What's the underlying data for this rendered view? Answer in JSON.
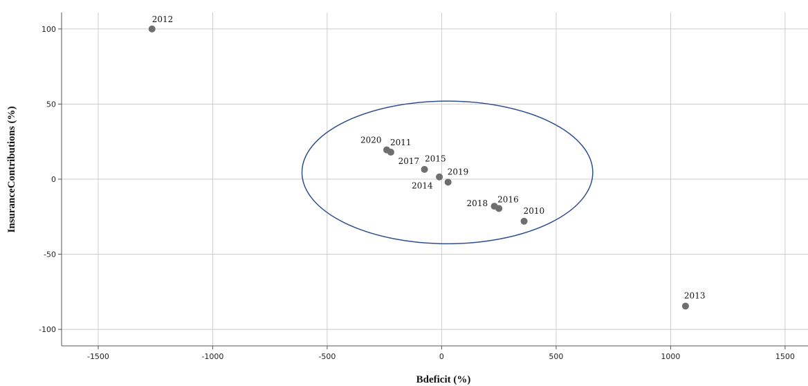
{
  "chart_data": {
    "type": "scatter",
    "xlabel": "Bdeficit (%)",
    "ylabel": "InsuranceContributions (%)",
    "xlim": [
      -1660,
      1600
    ],
    "ylim": [
      -111,
      111
    ],
    "x_ticks": [
      -1500,
      -1000,
      -500,
      0,
      500,
      1000,
      1500
    ],
    "y_ticks": [
      -100,
      -50,
      0,
      50,
      100
    ],
    "grid": true,
    "points": [
      {
        "label": "2012",
        "x": -1265,
        "y": 100
      },
      {
        "label": "2020",
        "x": -240,
        "y": 19.5
      },
      {
        "label": "2011",
        "x": -222,
        "y": 18
      },
      {
        "label": "2017",
        "x": -75,
        "y": 6.5
      },
      {
        "label": "2015",
        "x": -10,
        "y": 1.5
      },
      {
        "label": "2014",
        "x": -10,
        "y": 1.5
      },
      {
        "label": "2019",
        "x": 28,
        "y": -2
      },
      {
        "label": "2018",
        "x": 230,
        "y": -18
      },
      {
        "label": "2016",
        "x": 250,
        "y": -19.5
      },
      {
        "label": "2010",
        "x": 360,
        "y": -28
      },
      {
        "label": "2013",
        "x": 1065,
        "y": -84.5
      }
    ],
    "ellipse": {
      "cx": 25,
      "cy": 4.5,
      "rx": 635,
      "ry": 47.5,
      "color": "#2e4f8f"
    },
    "point_color": "#6e6e6e"
  }
}
